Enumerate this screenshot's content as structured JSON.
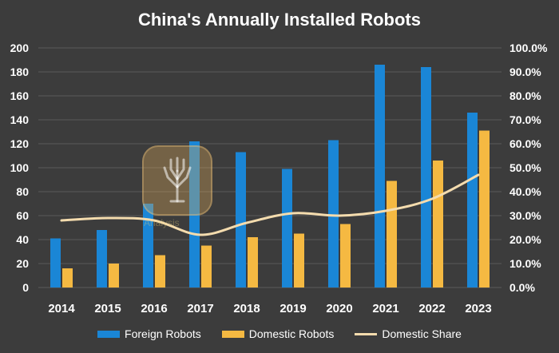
{
  "chart_data": {
    "type": "bar",
    "title": "China's Annually Installed Robots",
    "categories": [
      "2014",
      "2015",
      "2016",
      "2017",
      "2018",
      "2019",
      "2020",
      "2021",
      "2022",
      "2023"
    ],
    "series": [
      {
        "name": "Foreign Robots",
        "type": "bar",
        "axis": "left",
        "color": "#1a86d6",
        "values": [
          41,
          48,
          70,
          122,
          113,
          99,
          123,
          186,
          184,
          146
        ]
      },
      {
        "name": "Domestic Robots",
        "type": "bar",
        "axis": "left",
        "color": "#f5b942",
        "values": [
          16,
          20,
          27,
          35,
          42,
          45,
          53,
          89,
          106,
          131
        ]
      },
      {
        "name": "Domestic Share",
        "type": "line",
        "axis": "right",
        "color": "#f4dcae",
        "values": [
          28.0,
          29.0,
          28.0,
          22.0,
          27.0,
          31.0,
          30.0,
          32.0,
          37.0,
          47.0
        ]
      }
    ],
    "y_left": {
      "min": 0,
      "max": 200,
      "step": 20,
      "ticks": [
        "0",
        "20",
        "40",
        "60",
        "80",
        "100",
        "120",
        "140",
        "160",
        "180",
        "200"
      ]
    },
    "y_right": {
      "min": 0,
      "max": 100,
      "step": 10,
      "ticks": [
        "0.0%",
        "10.0%",
        "20.0%",
        "30.0%",
        "40.0%",
        "50.0%",
        "60.0%",
        "70.0%",
        "80.0%",
        "90.0%",
        "100.0%"
      ]
    },
    "grid": true,
    "legend_position": "bottom",
    "watermark_text": "Analysis"
  },
  "colors": {
    "background": "#3c3c3c",
    "grid": "#5a5a5a",
    "text": "#ffffff"
  }
}
